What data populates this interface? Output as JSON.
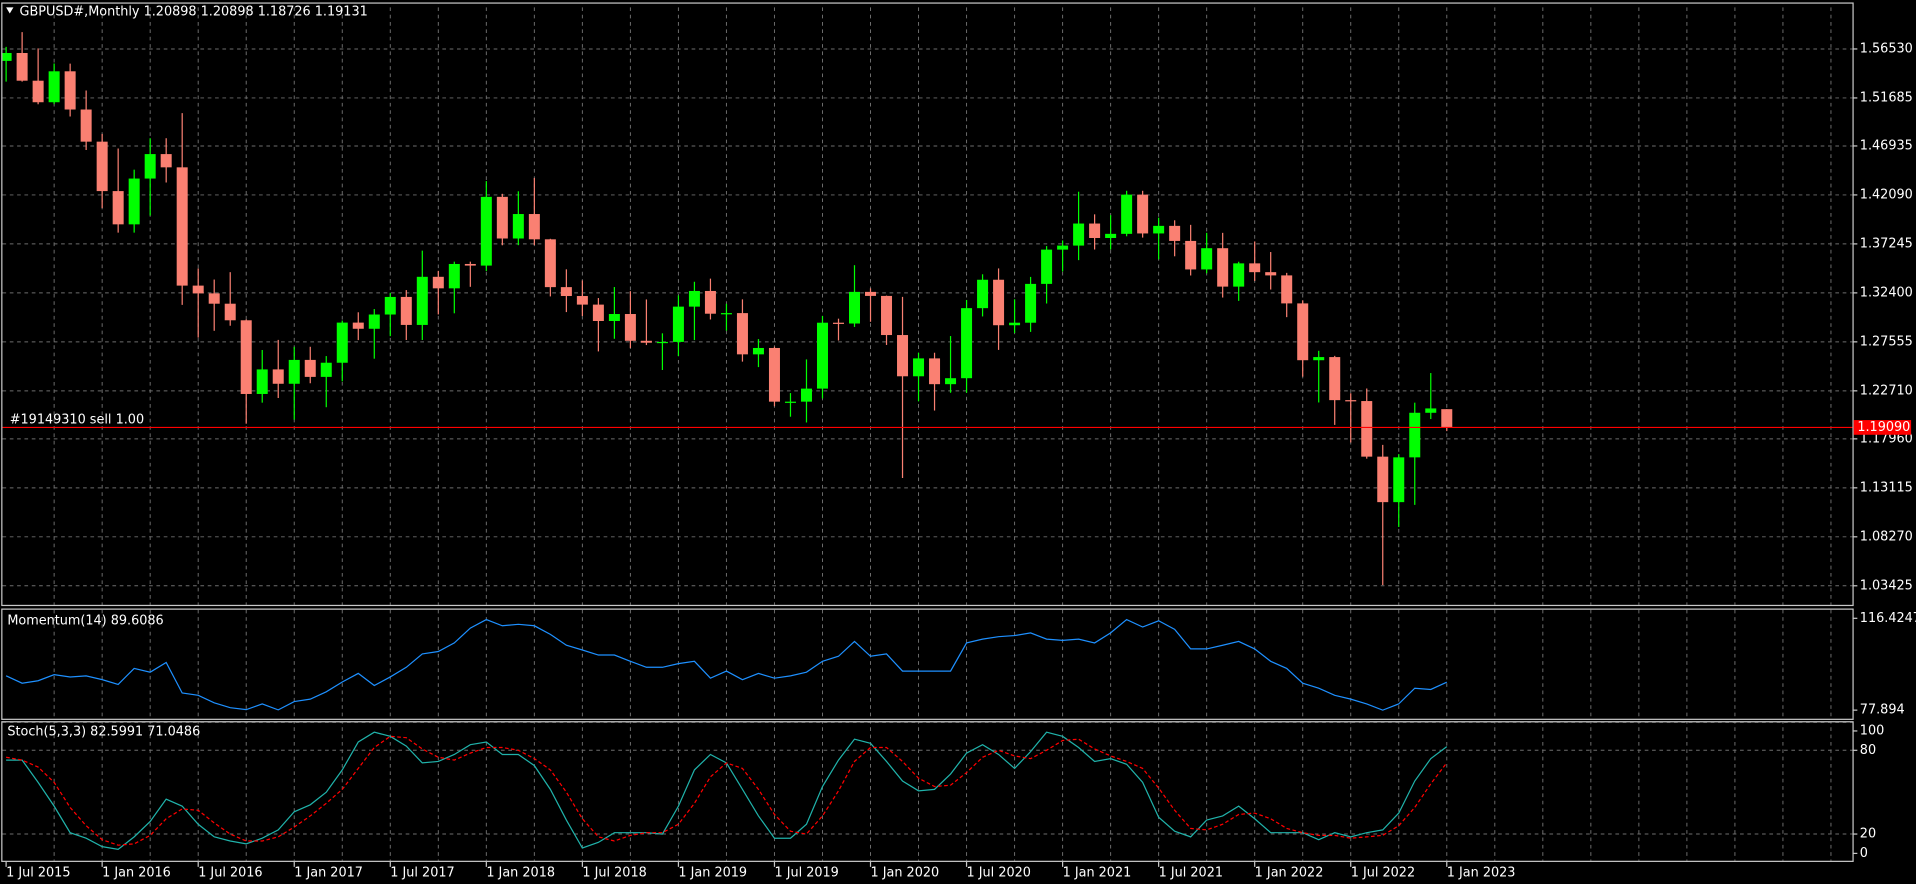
{
  "chart_data": [
    {
      "type": "candlestick",
      "title": "GBPUSD#,Monthly  1.20898 1.20898 1.18726 1.19131",
      "categories": [
        "1 Jul 2015",
        null,
        null,
        null,
        null,
        null,
        "1 Jan 2016",
        null,
        null,
        null,
        null,
        null,
        "1 Jul 2016",
        null,
        null,
        null,
        null,
        null,
        "1 Jan 2017",
        null,
        null,
        null,
        null,
        null,
        "1 Jul 2017",
        null,
        null,
        null,
        null,
        null,
        "1 Jan 2018",
        null,
        null,
        null,
        null,
        null,
        "1 Jul 2018",
        null,
        null,
        null,
        null,
        null,
        "1 Jan 2019",
        null,
        null,
        null,
        null,
        null,
        "1 Jul 2019",
        null,
        null,
        null,
        null,
        null,
        "1 Jan 2020",
        null,
        null,
        null,
        null,
        null,
        "1 Jul 2020",
        null,
        null,
        null,
        null,
        null,
        "1 Jan 2021",
        null,
        null,
        null,
        null,
        null,
        "1 Jul 2021",
        null,
        null,
        null,
        null,
        null,
        "1 Jan 2022",
        null,
        null,
        null,
        null,
        null,
        "1 Jul 2022",
        null,
        null,
        null,
        null,
        null,
        "1 Jan 2023"
      ],
      "open": [
        1.5535,
        1.5613,
        1.5339,
        1.5126,
        1.5432,
        1.5054,
        1.4736,
        1.4247,
        1.3918,
        1.4371,
        1.4613,
        1.4482,
        1.3312,
        1.3235,
        1.3133,
        1.2969,
        1.224,
        1.2483,
        1.2341,
        1.2577,
        1.2409,
        1.2549,
        1.2946,
        1.2885,
        1.3026,
        1.32,
        1.2923,
        1.3399,
        1.3285,
        1.3526,
        1.351,
        1.419,
        1.3778,
        1.402,
        1.377,
        1.3297,
        1.3209,
        1.3124,
        1.2962,
        1.3031,
        1.2766,
        1.2747,
        1.2755,
        1.3104,
        1.3259,
        1.3034,
        1.304,
        1.2632,
        1.2695,
        1.2164,
        1.2164,
        1.2293,
        1.2945,
        1.2937,
        1.325,
        1.321,
        1.2823,
        1.2415,
        1.2592,
        1.2337,
        1.2396,
        1.3089,
        1.337,
        1.292,
        1.2945,
        1.3329,
        1.3668,
        1.3708,
        1.3926,
        1.3783,
        1.3824,
        1.4212,
        1.3828,
        1.3903,
        1.3754,
        1.3472,
        1.3682,
        1.3302,
        1.3532,
        1.3445,
        1.3413,
        1.3136,
        1.2574,
        1.2605,
        1.2179,
        1.217,
        1.162,
        1.117,
        1.1613,
        1.2054,
        1.20898
      ],
      "high": [
        1.5674,
        1.5819,
        1.5659,
        1.5509,
        1.5508,
        1.5242,
        1.4812,
        1.4668,
        1.4459,
        1.477,
        1.477,
        1.5018,
        1.3482,
        1.3372,
        1.3445,
        1.2977,
        1.2675,
        1.2775,
        1.2706,
        1.2707,
        1.2615,
        1.2966,
        1.3048,
        1.308,
        1.3241,
        1.3268,
        1.3658,
        1.3458,
        1.3549,
        1.3549,
        1.4346,
        1.422,
        1.4245,
        1.4377,
        1.3775,
        1.3473,
        1.3363,
        1.3189,
        1.3298,
        1.3257,
        1.3175,
        1.284,
        1.3215,
        1.335,
        1.3381,
        1.3132,
        1.3176,
        1.2783,
        1.2708,
        1.2249,
        1.2582,
        1.3012,
        1.2985,
        1.3514,
        1.3285,
        1.3213,
        1.32,
        1.2648,
        1.2648,
        1.2813,
        1.317,
        1.3424,
        1.3482,
        1.3177,
        1.3398,
        1.3703,
        1.3759,
        1.4241,
        1.4017,
        1.4009,
        1.425,
        1.425,
        1.3984,
        1.3958,
        1.3913,
        1.3834,
        1.3834,
        1.3548,
        1.3749,
        1.3644,
        1.3438,
        1.3167,
        1.2667,
        1.2617,
        1.2247,
        1.2294,
        1.1737,
        1.1645,
        1.2154,
        1.2447,
        1.20898
      ],
      "low": [
        1.533,
        1.533,
        1.5106,
        1.5107,
        1.4985,
        1.4654,
        1.4079,
        1.3836,
        1.3836,
        1.4005,
        1.4332,
        1.3122,
        1.2798,
        1.2865,
        1.2915,
        1.1946,
        1.2154,
        1.22,
        1.1986,
        1.2346,
        1.2109,
        1.2365,
        1.2773,
        1.2589,
        1.2812,
        1.2774,
        1.2774,
        1.3027,
        1.3038,
        1.33,
        1.3456,
        1.3711,
        1.3712,
        1.3713,
        1.3205,
        1.305,
        1.3011,
        1.2661,
        1.2786,
        1.2695,
        1.2724,
        1.2477,
        1.2615,
        1.2773,
        1.2977,
        1.2866,
        1.256,
        1.2506,
        1.2119,
        1.2015,
        1.1958,
        1.2196,
        1.2769,
        1.2903,
        1.2954,
        1.2725,
        1.1409,
        1.2167,
        1.2076,
        1.2252,
        1.2252,
        1.3007,
        1.2676,
        1.2843,
        1.2854,
        1.3135,
        1.3452,
        1.3564,
        1.3669,
        1.3669,
        1.38,
        1.3787,
        1.3572,
        1.3602,
        1.3412,
        1.3434,
        1.3194,
        1.3161,
        1.3358,
        1.3273,
        1.3,
        1.2411,
        1.2156,
        1.1934,
        1.176,
        1.16,
        1.035,
        1.0924,
        1.1143,
        1.1992,
        1.18726
      ],
      "close": [
        1.5613,
        1.5339,
        1.5126,
        1.5432,
        1.5054,
        1.4736,
        1.4247,
        1.3918,
        1.4371,
        1.4613,
        1.4482,
        1.3312,
        1.3235,
        1.3133,
        1.2969,
        1.224,
        1.2483,
        1.2341,
        1.2577,
        1.2409,
        1.2549,
        1.2946,
        1.2885,
        1.3026,
        1.32,
        1.2923,
        1.3399,
        1.3285,
        1.3526,
        1.351,
        1.419,
        1.3778,
        1.402,
        1.377,
        1.3297,
        1.3209,
        1.3124,
        1.2962,
        1.3031,
        1.2766,
        1.2747,
        1.2755,
        1.3104,
        1.3259,
        1.3034,
        1.304,
        1.2632,
        1.2695,
        1.2164,
        1.2164,
        1.2293,
        1.2945,
        1.2937,
        1.325,
        1.321,
        1.2823,
        1.2415,
        1.2592,
        1.2337,
        1.2396,
        1.3089,
        1.337,
        1.292,
        1.2945,
        1.3329,
        1.3668,
        1.3708,
        1.3926,
        1.3783,
        1.3824,
        1.4212,
        1.3828,
        1.3903,
        1.3754,
        1.3472,
        1.3682,
        1.3302,
        1.3532,
        1.3445,
        1.3413,
        1.3136,
        1.2574,
        1.2605,
        1.2179,
        1.217,
        1.162,
        1.117,
        1.1613,
        1.2054,
        1.2097,
        1.19131
      ],
      "up_color": "#00ff00",
      "down_color": "#fa8072",
      "ylim": [
        1.0154,
        1.6101
      ],
      "yticks": [
        {
          "value": 1.5653,
          "label": "1.56530"
        },
        1.51685,
        1.46935,
        {
          "value": 1.4209,
          "label": "1.42090"
        },
        1.37245,
        {
          "value": 1.324,
          "label": "1.32400"
        },
        1.27555,
        {
          "value": 1.2271,
          "label": "1.22710"
        },
        {
          "value": 1.1796,
          "label": "1.17960"
        },
        1.13115,
        {
          "value": 1.0827,
          "label": "1.08270"
        },
        1.03425
      ],
      "grid": true,
      "order": {
        "label": "#19149310 sell 1.00",
        "price": {
          "value": 1.1909,
          "label": "1.19090"
        },
        "color": "#ff0000"
      }
    },
    {
      "type": "line",
      "title": "Momentum(14) 89.6086",
      "series": [
        {
          "color": "#1e90ff",
          "values": [
            92.3,
            89.2,
            90.2,
            92.8,
            91.8,
            92.3,
            90.7,
            88.7,
            95.4,
            93.8,
            97.9,
            85.1,
            84.1,
            81.0,
            78.9,
            78.1,
            80.5,
            78.0,
            81.5,
            82.5,
            85.6,
            89.7,
            93.3,
            88.2,
            91.8,
            95.9,
            101.5,
            102.5,
            106.1,
            112.3,
            115.9,
            113.3,
            113.9,
            113.3,
            109.7,
            105.1,
            103.1,
            101.0,
            101.0,
            98.4,
            95.9,
            95.9,
            97.4,
            98.4,
            91.3,
            94.3,
            90.7,
            93.3,
            91.3,
            92.3,
            93.8,
            98.4,
            100.5,
            106.7,
            100.5,
            101.5,
            94.3,
            94.3,
            94.3,
            94.3,
            106.1,
            107.7,
            108.7,
            109.2,
            110.3,
            107.7,
            107.2,
            107.7,
            106.1,
            110.3,
            115.9,
            112.8,
            115.4,
            111.8,
            103.6,
            103.6,
            105.1,
            106.7,
            103.6,
            98.4,
            95.4,
            89.2,
            87.1,
            84.1,
            82.5,
            80.5,
            77.9,
            80.5,
            87.1,
            86.6,
            89.6086
          ]
        }
      ],
      "ylim": [
        77.894,
        116.4247
      ],
      "yticks": [
        77.894,
        116.4247
      ],
      "grid": false
    },
    {
      "type": "line",
      "title": "Stoch(5,3,3) 82.5991 71.0486",
      "series": [
        {
          "color": "#20b2aa",
          "dash": false,
          "values": [
            73,
            73,
            57,
            40,
            21,
            17,
            11,
            9,
            18,
            29,
            45,
            40,
            27,
            18,
            15,
            13,
            17,
            23,
            36,
            41,
            50,
            66,
            86,
            93,
            90,
            83,
            71,
            72,
            77,
            84,
            86,
            77,
            77,
            69,
            52,
            30,
            10,
            14,
            21,
            21,
            21,
            20,
            40,
            66,
            77,
            71,
            52,
            33,
            17,
            17,
            27,
            54,
            73,
            88,
            85,
            72,
            58,
            51,
            52,
            63,
            78,
            84,
            77,
            67,
            79,
            93,
            90,
            82,
            72,
            74,
            70,
            57,
            32,
            22,
            18,
            30,
            33,
            40,
            31,
            21,
            21,
            21,
            16,
            21,
            18,
            21,
            23,
            35,
            58,
            74,
            82.5991
          ]
        },
        {
          "color": "#ff0000",
          "dash": true,
          "values": [
            75,
            73,
            68,
            57,
            39,
            26,
            16,
            12,
            13,
            19,
            31,
            38,
            37,
            28,
            20,
            15,
            15,
            18,
            25,
            33,
            42,
            52,
            67,
            82,
            90,
            89,
            81,
            75,
            73,
            78,
            82,
            82,
            80,
            74,
            66,
            50,
            31,
            18,
            15,
            19,
            21,
            21,
            27,
            42,
            61,
            71,
            67,
            52,
            34,
            22,
            20,
            33,
            51,
            72,
            82,
            82,
            72,
            60,
            54,
            55,
            64,
            75,
            80,
            76,
            74,
            80,
            87,
            88,
            81,
            76,
            72,
            67,
            53,
            37,
            24,
            23,
            27,
            34,
            35,
            31,
            24,
            21,
            19,
            19,
            17,
            18,
            19,
            26,
            39,
            56,
            71.0486
          ]
        }
      ],
      "ylim": [
        0,
        100
      ],
      "yticks": [
        0,
        20,
        80,
        100
      ],
      "grid": true
    }
  ]
}
